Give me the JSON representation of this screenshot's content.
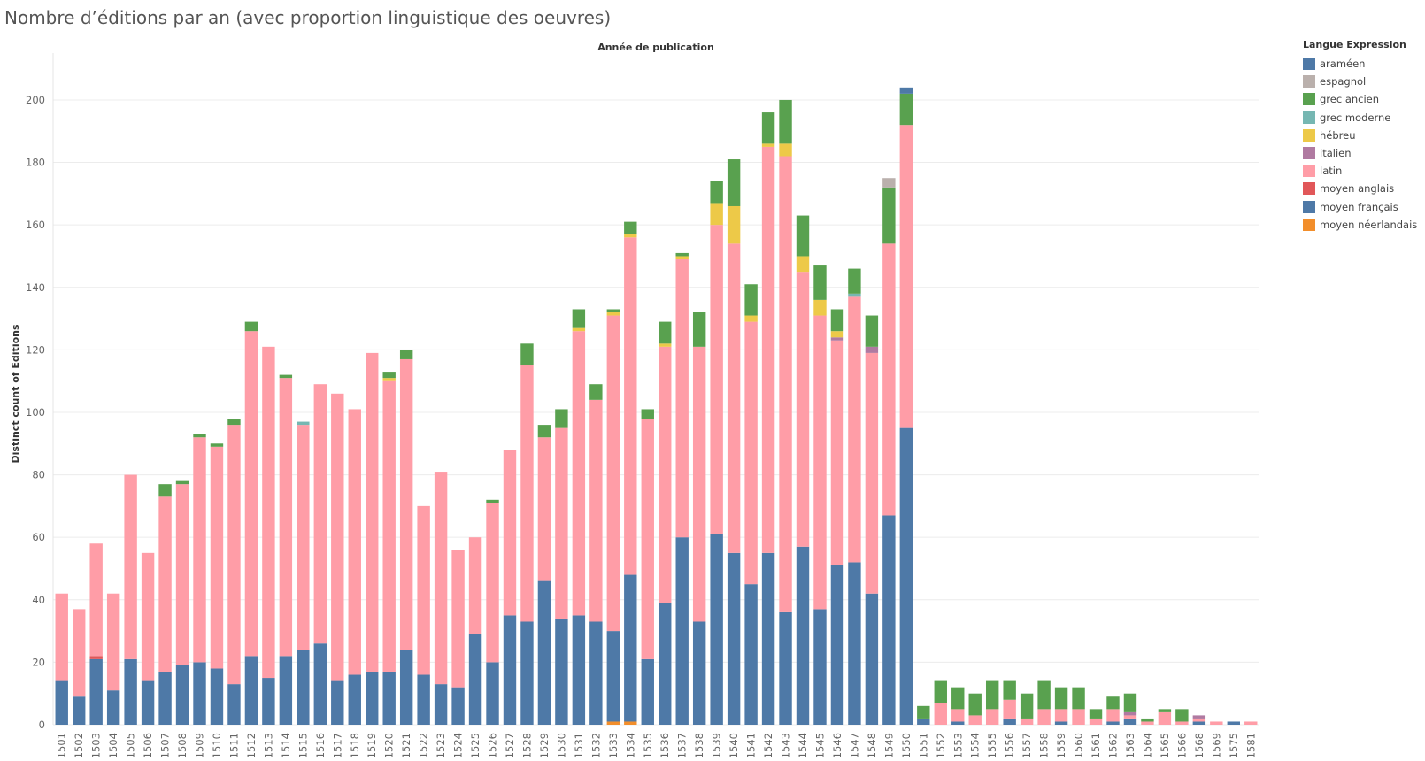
{
  "page": {
    "title": "Nombre d’éditions par an (avec proportion linguistique des oeuvres)"
  },
  "legend": {
    "title": "Langue Expression",
    "items": [
      {
        "label": "araméen",
        "color": "#4e79a7"
      },
      {
        "label": "espagnol",
        "color": "#bab0ac"
      },
      {
        "label": "grec ancien",
        "color": "#59a14f"
      },
      {
        "label": "grec moderne",
        "color": "#76b7b2"
      },
      {
        "label": "hébreu",
        "color": "#edc948"
      },
      {
        "label": "italien",
        "color": "#b07aa1"
      },
      {
        "label": "latin",
        "color": "#ff9da7"
      },
      {
        "label": "moyen anglais",
        "color": "#e15759"
      },
      {
        "label": "moyen français",
        "color": "#4e79a7"
      },
      {
        "label": "moyen néerlandais",
        "color": "#f28e2b"
      }
    ]
  },
  "chart_data": {
    "type": "bar",
    "stacked": true,
    "title": "Nombre d’éditions par an (avec proportion linguistique des oeuvres)",
    "xlabel": "Année de publication",
    "ylabel": "Distinct count of Editions",
    "ylim": [
      0,
      215
    ],
    "yticks": [
      0,
      20,
      40,
      60,
      80,
      100,
      120,
      140,
      160,
      180,
      200
    ],
    "grid": true,
    "legend_position": "right",
    "categories": [
      "1501",
      "1502",
      "1503",
      "1504",
      "1505",
      "1506",
      "1507",
      "1508",
      "1509",
      "1510",
      "1511",
      "1512",
      "1513",
      "1514",
      "1515",
      "1516",
      "1517",
      "1518",
      "1519",
      "1520",
      "1521",
      "1522",
      "1523",
      "1524",
      "1525",
      "1526",
      "1527",
      "1528",
      "1529",
      "1530",
      "1531",
      "1532",
      "1533",
      "1534",
      "1535",
      "1536",
      "1537",
      "1538",
      "1539",
      "1540",
      "1541",
      "1542",
      "1543",
      "1544",
      "1545",
      "1546",
      "1547",
      "1548",
      "1549",
      "1550",
      "1551",
      "1552",
      "1553",
      "1554",
      "1555",
      "1556",
      "1557",
      "1558",
      "1559",
      "1560",
      "1561",
      "1562",
      "1563",
      "1564",
      "1565",
      "1566",
      "1568",
      "1569",
      "1575",
      "1581"
    ],
    "series": [
      {
        "name": "moyen néerlandais",
        "color": "#f28e2b",
        "values": [
          0,
          0,
          0,
          0,
          0,
          0,
          0,
          0,
          0,
          0,
          0,
          0,
          0,
          0,
          0,
          0,
          0,
          0,
          0,
          0,
          0,
          0,
          0,
          0,
          0,
          0,
          0,
          0,
          0,
          0,
          0,
          0,
          1,
          1,
          0,
          0,
          0,
          0,
          0,
          0,
          0,
          0,
          0,
          0,
          0,
          0,
          0,
          0,
          0,
          0,
          0,
          0,
          0,
          0,
          0,
          0,
          0,
          0,
          0,
          0,
          0,
          0,
          0,
          0,
          0,
          0,
          0,
          0,
          0,
          0
        ]
      },
      {
        "name": "moyen français",
        "color": "#4e79a7",
        "values": [
          14,
          9,
          21,
          11,
          21,
          14,
          17,
          19,
          20,
          18,
          13,
          22,
          15,
          22,
          24,
          26,
          14,
          16,
          17,
          17,
          24,
          16,
          13,
          12,
          29,
          20,
          35,
          33,
          46,
          34,
          35,
          33,
          29,
          47,
          21,
          39,
          60,
          33,
          61,
          55,
          45,
          55,
          36,
          57,
          37,
          51,
          52,
          42,
          67,
          95,
          2,
          0,
          1,
          0,
          0,
          2,
          0,
          0,
          1,
          0,
          0,
          1,
          2,
          0,
          0,
          0,
          1,
          0,
          1,
          0
        ]
      },
      {
        "name": "moyen anglais",
        "color": "#e15759",
        "values": [
          0,
          0,
          1,
          0,
          0,
          0,
          0,
          0,
          0,
          0,
          0,
          0,
          0,
          0,
          0,
          0,
          0,
          0,
          0,
          0,
          0,
          0,
          0,
          0,
          0,
          0,
          0,
          0,
          0,
          0,
          0,
          0,
          0,
          0,
          0,
          0,
          0,
          0,
          0,
          0,
          0,
          0,
          0,
          0,
          0,
          0,
          0,
          0,
          0,
          0,
          0,
          0,
          0,
          0,
          0,
          0,
          0,
          0,
          0,
          0,
          0,
          0,
          0,
          0,
          0,
          0,
          0,
          0,
          0,
          0
        ]
      },
      {
        "name": "latin",
        "color": "#ff9da7",
        "values": [
          28,
          28,
          36,
          31,
          59,
          41,
          56,
          58,
          72,
          71,
          83,
          104,
          106,
          89,
          72,
          83,
          92,
          85,
          102,
          93,
          93,
          54,
          68,
          44,
          31,
          51,
          53,
          82,
          46,
          61,
          91,
          71,
          101,
          108,
          77,
          82,
          89,
          88,
          99,
          99,
          84,
          130,
          146,
          88,
          94,
          72,
          85,
          77,
          87,
          97,
          0,
          7,
          4,
          3,
          5,
          6,
          2,
          5,
          4,
          5,
          2,
          4,
          1,
          1,
          4,
          1,
          1,
          1,
          0,
          1
        ]
      },
      {
        "name": "italien",
        "color": "#b07aa1",
        "values": [
          0,
          0,
          0,
          0,
          0,
          0,
          0,
          0,
          0,
          0,
          0,
          0,
          0,
          0,
          0,
          0,
          0,
          0,
          0,
          0,
          0,
          0,
          0,
          0,
          0,
          0,
          0,
          0,
          0,
          0,
          0,
          0,
          0,
          0,
          0,
          0,
          0,
          0,
          0,
          0,
          0,
          0,
          0,
          0,
          0,
          1,
          0,
          2,
          0,
          0,
          0,
          0,
          0,
          0,
          0,
          0,
          0,
          0,
          0,
          0,
          0,
          0,
          1,
          0,
          0,
          0,
          1,
          0,
          0,
          0
        ]
      },
      {
        "name": "hébreu",
        "color": "#edc948",
        "values": [
          0,
          0,
          0,
          0,
          0,
          0,
          0,
          0,
          0,
          0,
          0,
          0,
          0,
          0,
          0,
          0,
          0,
          0,
          0,
          1,
          0,
          0,
          0,
          0,
          0,
          0,
          0,
          0,
          0,
          0,
          1,
          0,
          1,
          1,
          0,
          1,
          1,
          0,
          7,
          12,
          2,
          1,
          4,
          5,
          5,
          2,
          0,
          0,
          0,
          0,
          0,
          0,
          0,
          0,
          0,
          0,
          0,
          0,
          0,
          0,
          0,
          0,
          0,
          0,
          0,
          0,
          0,
          0,
          0,
          0
        ]
      },
      {
        "name": "grec moderne",
        "color": "#76b7b2",
        "values": [
          0,
          0,
          0,
          0,
          0,
          0,
          0,
          0,
          0,
          0,
          0,
          0,
          0,
          0,
          1,
          0,
          0,
          0,
          0,
          0,
          0,
          0,
          0,
          0,
          0,
          0,
          0,
          0,
          0,
          0,
          0,
          0,
          0,
          0,
          0,
          0,
          0,
          0,
          0,
          0,
          0,
          0,
          0,
          0,
          0,
          0,
          1,
          0,
          0,
          0,
          0,
          0,
          0,
          0,
          0,
          0,
          0,
          0,
          0,
          0,
          0,
          0,
          0,
          0,
          0,
          0,
          0,
          0,
          0,
          0
        ]
      },
      {
        "name": "grec ancien",
        "color": "#59a14f",
        "values": [
          0,
          0,
          0,
          0,
          0,
          0,
          4,
          1,
          1,
          1,
          2,
          3,
          0,
          1,
          0,
          0,
          0,
          0,
          0,
          2,
          3,
          0,
          0,
          0,
          0,
          1,
          0,
          7,
          4,
          6,
          6,
          5,
          1,
          4,
          3,
          7,
          1,
          11,
          7,
          15,
          10,
          10,
          14,
          13,
          11,
          7,
          8,
          10,
          18,
          10,
          4,
          7,
          7,
          7,
          9,
          6,
          8,
          9,
          7,
          7,
          3,
          4,
          6,
          1,
          1,
          4,
          0,
          0,
          0,
          0
        ]
      },
      {
        "name": "espagnol",
        "color": "#bab0ac",
        "values": [
          0,
          0,
          0,
          0,
          0,
          0,
          0,
          0,
          0,
          0,
          0,
          0,
          0,
          0,
          0,
          0,
          0,
          0,
          0,
          0,
          0,
          0,
          0,
          0,
          0,
          0,
          0,
          0,
          0,
          0,
          0,
          0,
          0,
          0,
          0,
          0,
          0,
          0,
          0,
          0,
          0,
          0,
          0,
          0,
          0,
          0,
          0,
          0,
          3,
          0,
          0,
          0,
          0,
          0,
          0,
          0,
          0,
          0,
          0,
          0,
          0,
          0,
          0,
          0,
          0,
          0,
          0,
          0,
          0,
          0
        ]
      },
      {
        "name": "araméen",
        "color": "#4e79a7",
        "values": [
          0,
          0,
          0,
          0,
          0,
          0,
          0,
          0,
          0,
          0,
          0,
          0,
          0,
          0,
          0,
          0,
          0,
          0,
          0,
          0,
          0,
          0,
          0,
          0,
          0,
          0,
          0,
          0,
          0,
          0,
          0,
          0,
          0,
          0,
          0,
          0,
          0,
          0,
          0,
          0,
          0,
          0,
          0,
          0,
          0,
          0,
          0,
          0,
          0,
          2,
          0,
          0,
          0,
          0,
          0,
          0,
          0,
          0,
          0,
          0,
          0,
          0,
          0,
          0,
          0,
          0,
          0,
          0,
          0,
          0
        ]
      }
    ]
  }
}
